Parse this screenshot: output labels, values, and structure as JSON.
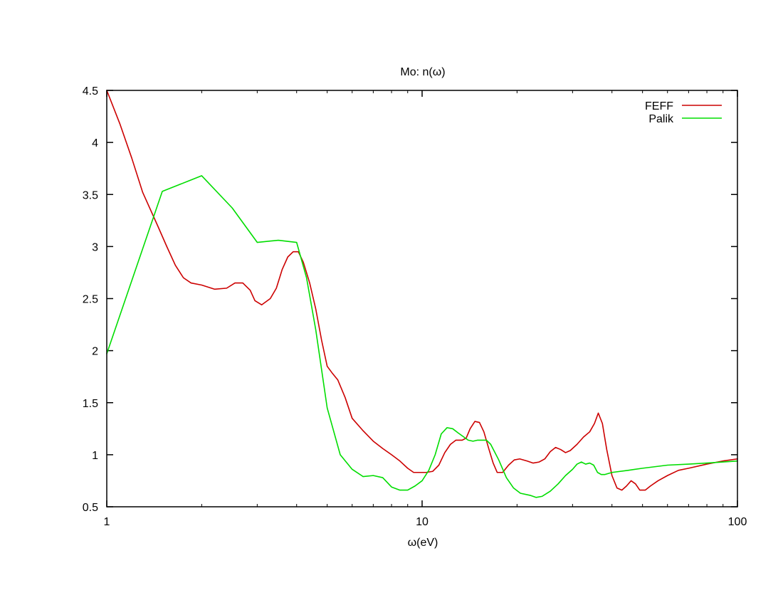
{
  "chart_data": {
    "type": "line",
    "title": "Mo: n(ω)",
    "xlabel": "ω(eV)",
    "ylabel": "",
    "xscale": "log",
    "xlim": [
      1,
      100
    ],
    "ylim": [
      0.5,
      4.5
    ],
    "x_ticks": [
      1,
      10,
      100
    ],
    "x_tick_labels": [
      "1",
      "10",
      "100"
    ],
    "y_ticks": [
      0.5,
      1,
      1.5,
      2,
      2.5,
      3,
      3.5,
      4,
      4.5
    ],
    "y_tick_labels": [
      "0.5",
      "1",
      "1.5",
      "2",
      "2.5",
      "3",
      "3.5",
      "4",
      "4.5"
    ],
    "grid": false,
    "legend_position": "top-right",
    "series": [
      {
        "name": "FEFF",
        "color": "#cc0000",
        "points": [
          [
            1.0,
            4.5
          ],
          [
            1.1,
            4.18
          ],
          [
            1.2,
            3.85
          ],
          [
            1.3,
            3.52
          ],
          [
            1.45,
            3.2
          ],
          [
            1.55,
            3.0
          ],
          [
            1.65,
            2.82
          ],
          [
            1.75,
            2.7
          ],
          [
            1.85,
            2.65
          ],
          [
            2.0,
            2.63
          ],
          [
            2.2,
            2.59
          ],
          [
            2.4,
            2.6
          ],
          [
            2.55,
            2.65
          ],
          [
            2.7,
            2.65
          ],
          [
            2.85,
            2.58
          ],
          [
            2.95,
            2.48
          ],
          [
            3.1,
            2.44
          ],
          [
            3.3,
            2.5
          ],
          [
            3.45,
            2.6
          ],
          [
            3.6,
            2.78
          ],
          [
            3.75,
            2.9
          ],
          [
            3.9,
            2.95
          ],
          [
            4.05,
            2.95
          ],
          [
            4.2,
            2.85
          ],
          [
            4.4,
            2.65
          ],
          [
            4.6,
            2.4
          ],
          [
            4.8,
            2.1
          ],
          [
            5.0,
            1.85
          ],
          [
            5.2,
            1.78
          ],
          [
            5.4,
            1.72
          ],
          [
            5.7,
            1.55
          ],
          [
            6.0,
            1.35
          ],
          [
            6.5,
            1.23
          ],
          [
            7.0,
            1.13
          ],
          [
            7.5,
            1.06
          ],
          [
            8.0,
            1.0
          ],
          [
            8.5,
            0.94
          ],
          [
            9.0,
            0.87
          ],
          [
            9.4,
            0.83
          ],
          [
            9.8,
            0.83
          ],
          [
            10.3,
            0.83
          ],
          [
            10.8,
            0.84
          ],
          [
            11.3,
            0.9
          ],
          [
            11.8,
            1.02
          ],
          [
            12.3,
            1.1
          ],
          [
            12.8,
            1.14
          ],
          [
            13.4,
            1.14
          ],
          [
            13.8,
            1.16
          ],
          [
            14.2,
            1.25
          ],
          [
            14.7,
            1.32
          ],
          [
            15.2,
            1.31
          ],
          [
            15.7,
            1.22
          ],
          [
            16.3,
            1.05
          ],
          [
            16.8,
            0.92
          ],
          [
            17.3,
            0.83
          ],
          [
            18.0,
            0.83
          ],
          [
            18.8,
            0.9
          ],
          [
            19.6,
            0.95
          ],
          [
            20.4,
            0.96
          ],
          [
            21.5,
            0.94
          ],
          [
            22.5,
            0.92
          ],
          [
            23.5,
            0.93
          ],
          [
            24.5,
            0.96
          ],
          [
            25.5,
            1.03
          ],
          [
            26.5,
            1.07
          ],
          [
            27.5,
            1.05
          ],
          [
            28.5,
            1.02
          ],
          [
            29.5,
            1.04
          ],
          [
            31.0,
            1.1
          ],
          [
            32.5,
            1.17
          ],
          [
            34.0,
            1.22
          ],
          [
            35.2,
            1.3
          ],
          [
            36.2,
            1.4
          ],
          [
            37.3,
            1.3
          ],
          [
            38.5,
            1.05
          ],
          [
            40.0,
            0.8
          ],
          [
            41.5,
            0.68
          ],
          [
            43.0,
            0.66
          ],
          [
            44.5,
            0.7
          ],
          [
            46.0,
            0.75
          ],
          [
            47.5,
            0.72
          ],
          [
            49.0,
            0.66
          ],
          [
            51.0,
            0.66
          ],
          [
            53.0,
            0.7
          ],
          [
            56.0,
            0.75
          ],
          [
            60.0,
            0.8
          ],
          [
            65.0,
            0.85
          ],
          [
            70.0,
            0.87
          ],
          [
            80.0,
            0.91
          ],
          [
            90.0,
            0.94
          ],
          [
            100.0,
            0.96
          ]
        ]
      },
      {
        "name": "Palik",
        "color": "#00dd00",
        "points": [
          [
            1.0,
            1.97
          ],
          [
            1.5,
            3.53
          ],
          [
            2.0,
            3.68
          ],
          [
            2.5,
            3.37
          ],
          [
            3.0,
            3.04
          ],
          [
            3.5,
            3.06
          ],
          [
            4.0,
            3.04
          ],
          [
            4.3,
            2.7
          ],
          [
            4.6,
            2.2
          ],
          [
            5.0,
            1.45
          ],
          [
            5.5,
            1.0
          ],
          [
            6.0,
            0.86
          ],
          [
            6.5,
            0.79
          ],
          [
            7.0,
            0.8
          ],
          [
            7.5,
            0.78
          ],
          [
            8.0,
            0.69
          ],
          [
            8.5,
            0.66
          ],
          [
            9.0,
            0.66
          ],
          [
            9.5,
            0.7
          ],
          [
            10.0,
            0.75
          ],
          [
            10.5,
            0.85
          ],
          [
            11.0,
            1.0
          ],
          [
            11.5,
            1.2
          ],
          [
            12.0,
            1.26
          ],
          [
            12.5,
            1.25
          ],
          [
            13.0,
            1.21
          ],
          [
            14.0,
            1.14
          ],
          [
            14.5,
            1.13
          ],
          [
            15.0,
            1.14
          ],
          [
            16.0,
            1.14
          ],
          [
            16.5,
            1.1
          ],
          [
            17.5,
            0.95
          ],
          [
            18.5,
            0.78
          ],
          [
            19.5,
            0.68
          ],
          [
            20.5,
            0.63
          ],
          [
            22.0,
            0.61
          ],
          [
            23.0,
            0.59
          ],
          [
            24.0,
            0.6
          ],
          [
            25.5,
            0.65
          ],
          [
            27.0,
            0.72
          ],
          [
            28.5,
            0.8
          ],
          [
            30.0,
            0.86
          ],
          [
            31.0,
            0.91
          ],
          [
            32.0,
            0.93
          ],
          [
            33.0,
            0.91
          ],
          [
            34.0,
            0.92
          ],
          [
            35.0,
            0.9
          ],
          [
            36.0,
            0.83
          ],
          [
            37.0,
            0.81
          ],
          [
            38.0,
            0.81
          ],
          [
            40.0,
            0.83
          ],
          [
            45.0,
            0.85
          ],
          [
            50.0,
            0.87
          ],
          [
            60.0,
            0.9
          ],
          [
            70.0,
            0.91
          ],
          [
            80.0,
            0.92
          ],
          [
            90.0,
            0.93
          ],
          [
            100.0,
            0.94
          ]
        ]
      }
    ]
  }
}
